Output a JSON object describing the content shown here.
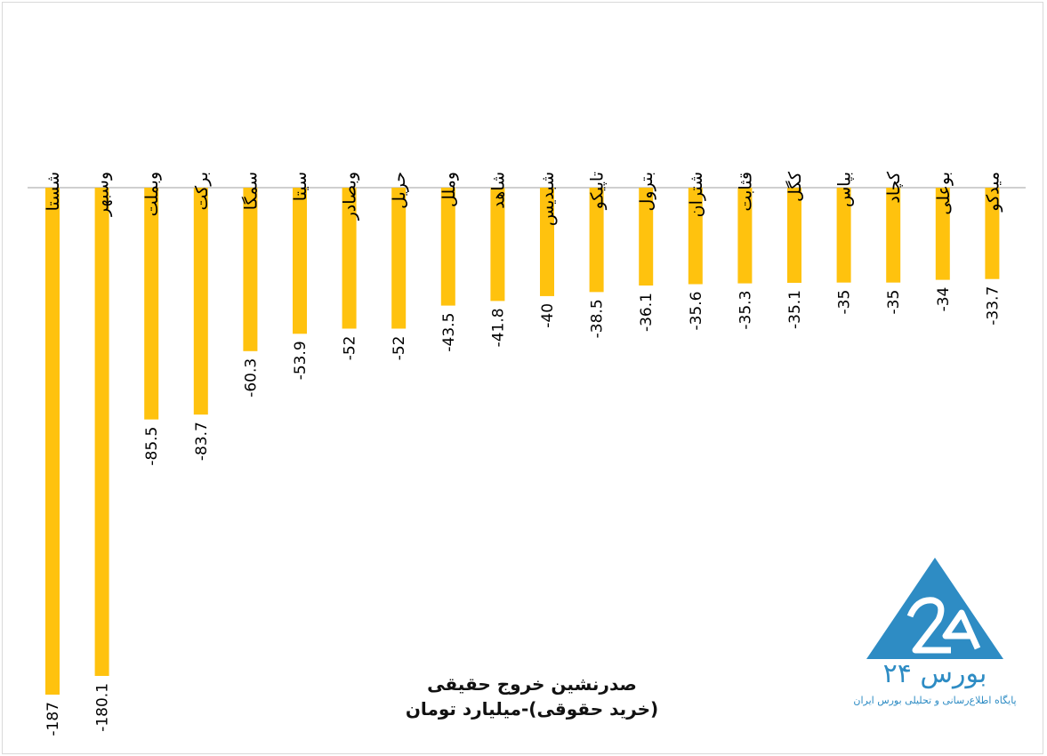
{
  "chart_data": {
    "type": "bar",
    "title": "صدرنشین خروج حقیقی",
    "subtitle": "(خرید حقوقی)-میلیارد تومان",
    "categories": [
      "شستا",
      "وسبهر",
      "وبملت",
      "برکت",
      "سمگا",
      "سیتا",
      "وبصادر",
      "حریل",
      "وملل",
      "شاهد",
      "شبدیس",
      "تاپیکو",
      "بترول",
      "شتران",
      "قثابت",
      "کگل",
      "بپاس",
      "کچاد",
      "بوعلی",
      "میدکو"
    ],
    "values": [
      -187,
      -180.1,
      -85.5,
      -83.7,
      -60.3,
      -53.9,
      -52,
      -52,
      -43.5,
      -41.8,
      -40,
      -38.5,
      -36.1,
      -35.6,
      -35.3,
      -35.1,
      -35,
      -35,
      -34,
      -33.7
    ],
    "value_labels": [
      "-187",
      "-180.1",
      "-85.5",
      "-83.7",
      "-60.3",
      "-53.9",
      "-52",
      "-52",
      "-43.5",
      "-41.8",
      "-40",
      "-38.5",
      "-36.1",
      "-35.6",
      "-35.3",
      "-35.1",
      "-35",
      "-35",
      "-34",
      "-33.7"
    ],
    "ylim": [
      -187,
      0
    ],
    "bar_color": "#ffc20e",
    "axis_color": "#bfbfbf",
    "grid": false,
    "legend": "none"
  },
  "logo": {
    "name": "بورس ۲۴",
    "tagline": "پایگاه اطلاع‌رسانی و تحلیلی بورس ایران",
    "color": "#2e8cc4"
  }
}
